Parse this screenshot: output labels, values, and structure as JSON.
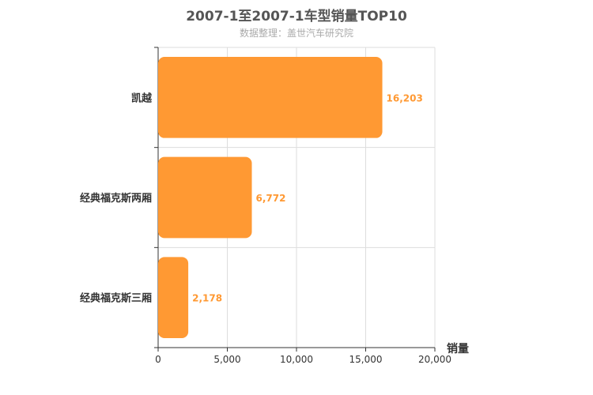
{
  "chart_data": {
    "type": "bar",
    "orientation": "horizontal",
    "title": "2007-1至2007-1车型销量TOP10",
    "subtitle": "数据整理：盖世汽车研究院",
    "categories": [
      "凯越",
      "经典福克斯两厢",
      "经典福克斯三厢"
    ],
    "values": [
      16203,
      6772,
      2178
    ],
    "value_labels": [
      "16,203",
      "6,772",
      "2,178"
    ],
    "xlabel": "销量",
    "xlim": [
      0,
      20000
    ],
    "x_ticks": [
      0,
      5000,
      10000,
      15000,
      20000
    ],
    "x_tick_labels": [
      "0",
      "5,000",
      "10,000",
      "15,000",
      "20,000"
    ],
    "grid": true,
    "bar_color": "#ff9933"
  }
}
